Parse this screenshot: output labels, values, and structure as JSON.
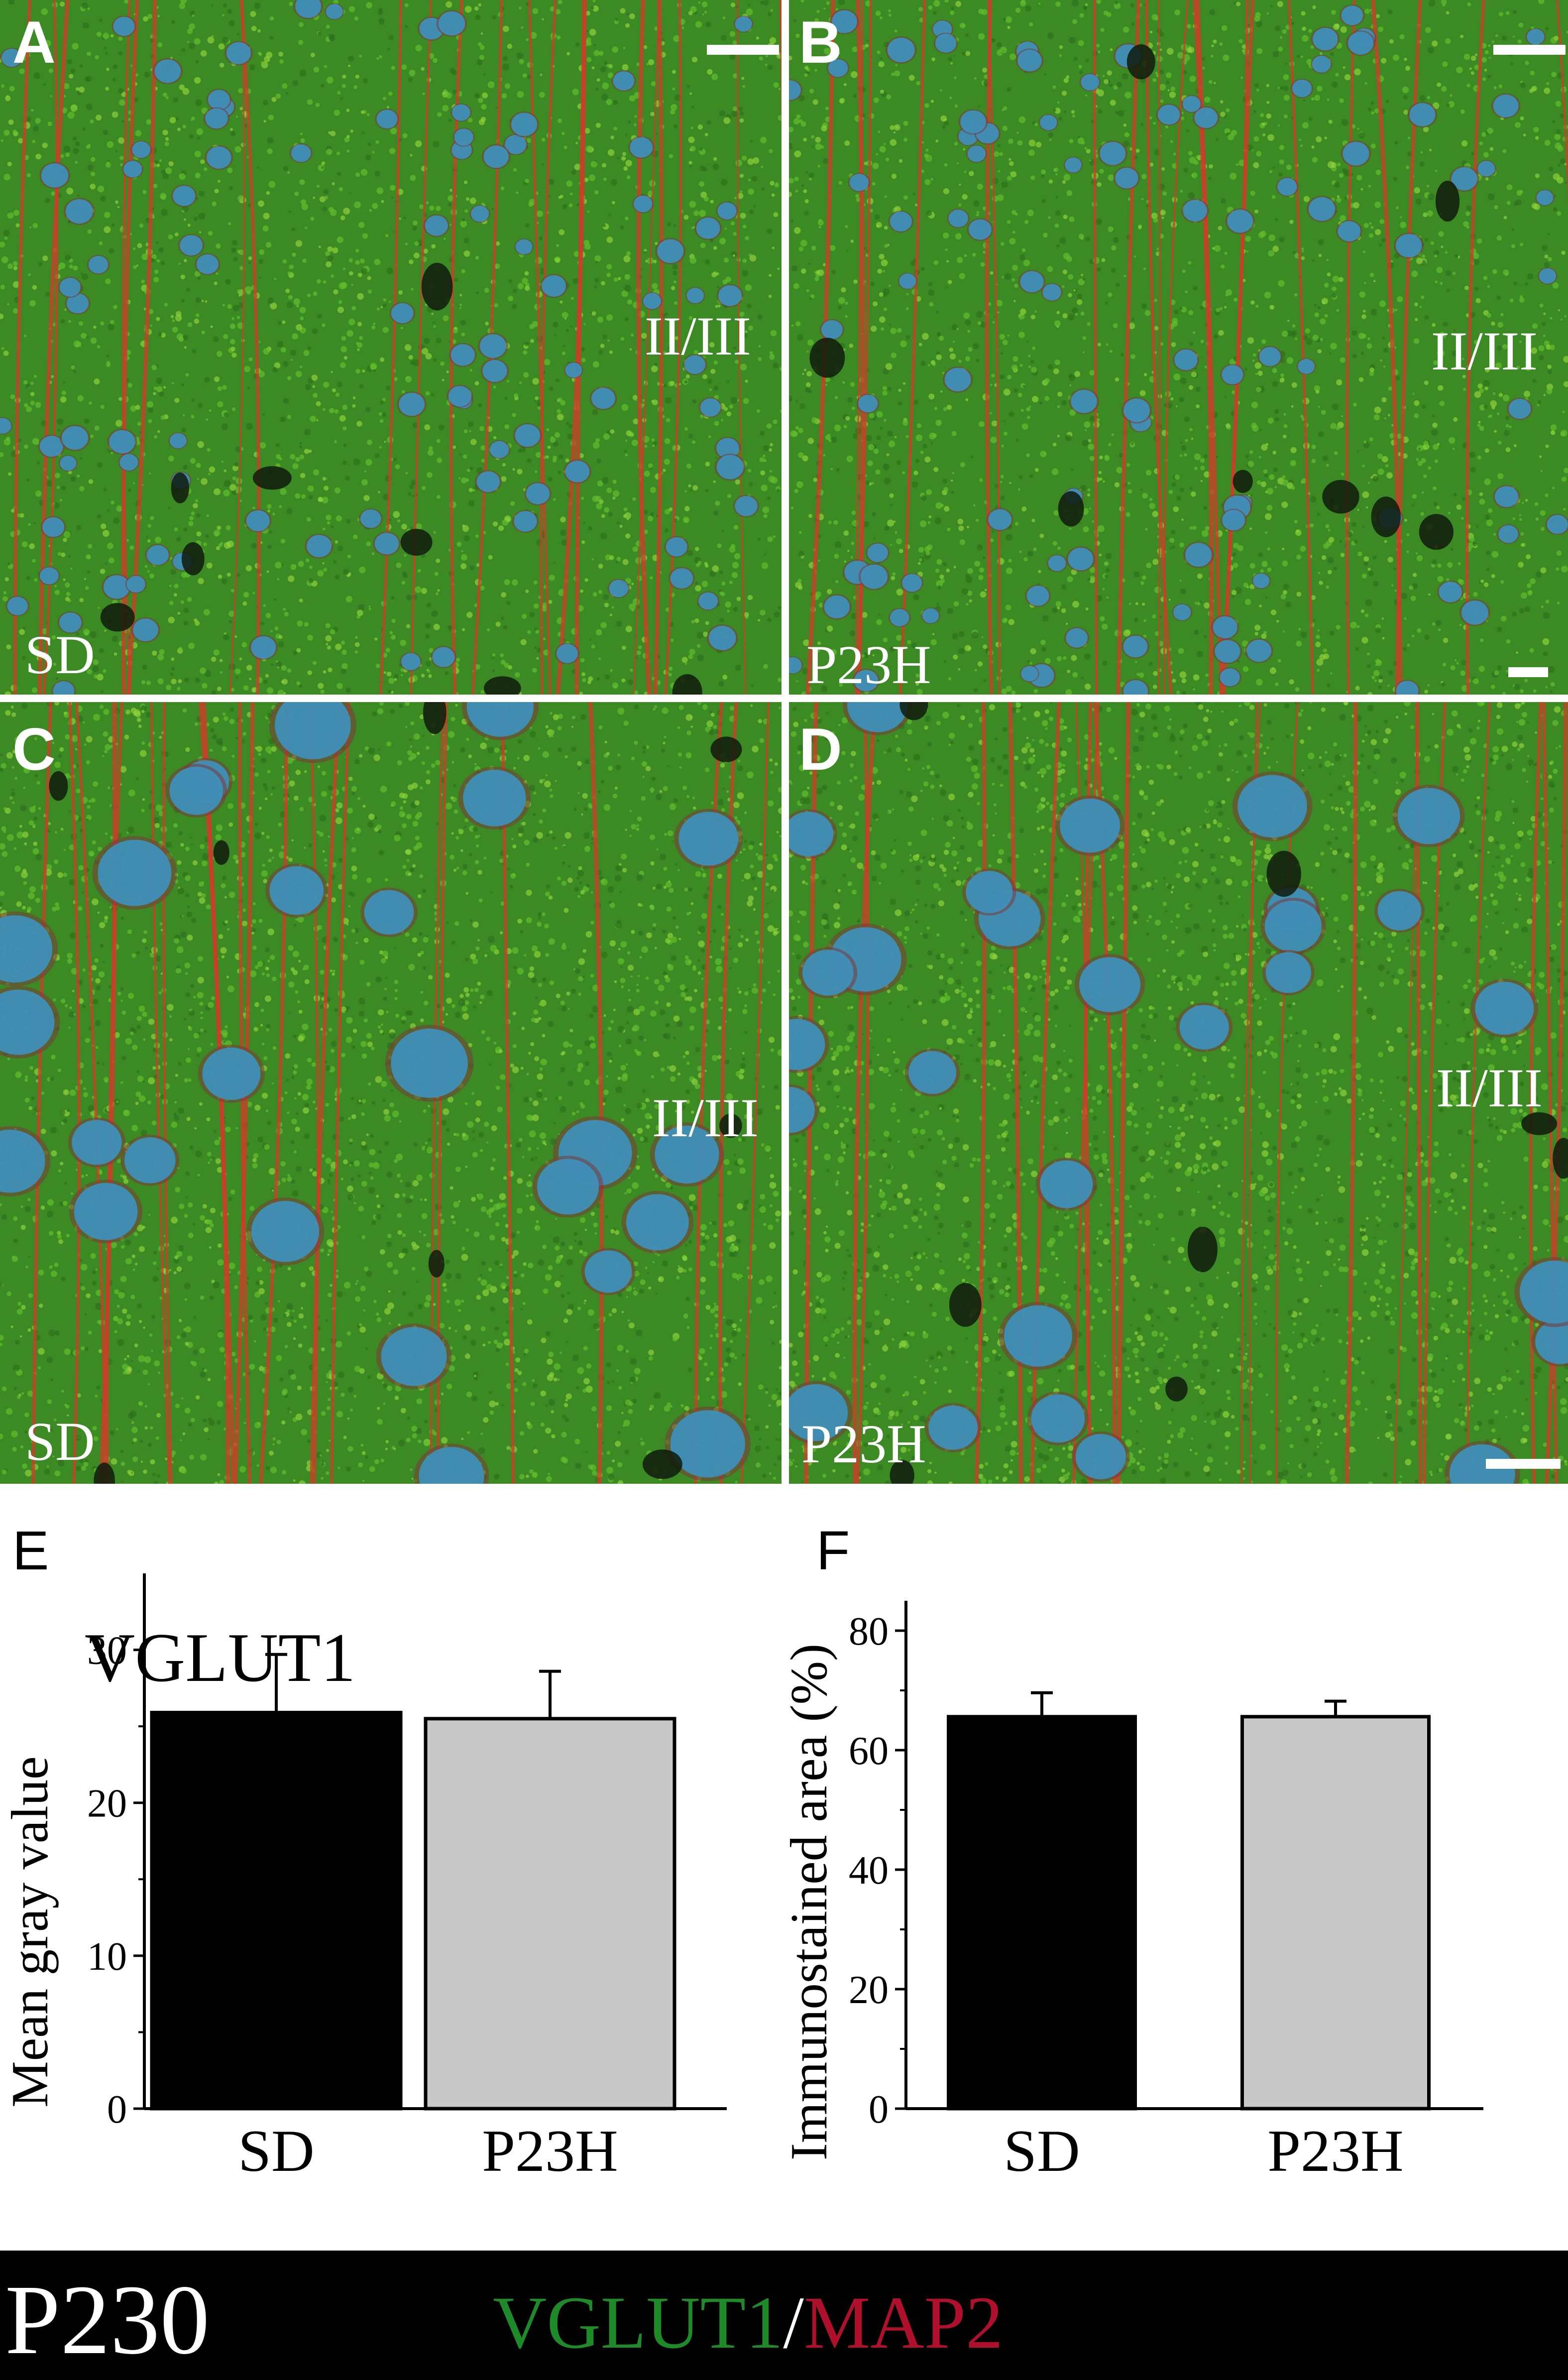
{
  "panels": [
    {
      "letter": "A",
      "condition": "SD",
      "layer": "II/III"
    },
    {
      "letter": "B",
      "condition": "P23H",
      "layer": "II/III"
    },
    {
      "letter": "C",
      "condition": "SD",
      "layer": "II/III"
    },
    {
      "letter": "D",
      "condition": "P23H",
      "layer": "II/III"
    }
  ],
  "colors": {
    "green": "#2e8b2a",
    "red": "#c0143c",
    "nuclei": "#3aa6d8"
  },
  "chart_title": "VGLUT1",
  "chart_data": [
    {
      "letter": "E",
      "type": "bar",
      "categories": [
        "SD",
        "P23H"
      ],
      "values": [
        25.9,
        25.5
      ],
      "errors": [
        3.8,
        3.1
      ],
      "bar_colors": [
        "#000000",
        "#c8c8c8"
      ],
      "ylabel": "Mean gray value",
      "ylim": [
        0,
        35
      ],
      "yticks": [
        0,
        10,
        20,
        30
      ]
    },
    {
      "letter": "F",
      "type": "bar",
      "categories": [
        "SD",
        "P23H"
      ],
      "values": [
        65.6,
        65.6
      ],
      "errors": [
        4.0,
        2.6
      ],
      "bar_colors": [
        "#000000",
        "#c8c8c8"
      ],
      "ylabel": "Immunostained area (%)",
      "ylim": [
        0,
        85
      ],
      "yticks": [
        0,
        20,
        40,
        60,
        80
      ]
    }
  ],
  "footer": {
    "timepoint": "P230",
    "marker_green": "VGLUT1",
    "separator": "/",
    "marker_red": "MAP2"
  }
}
